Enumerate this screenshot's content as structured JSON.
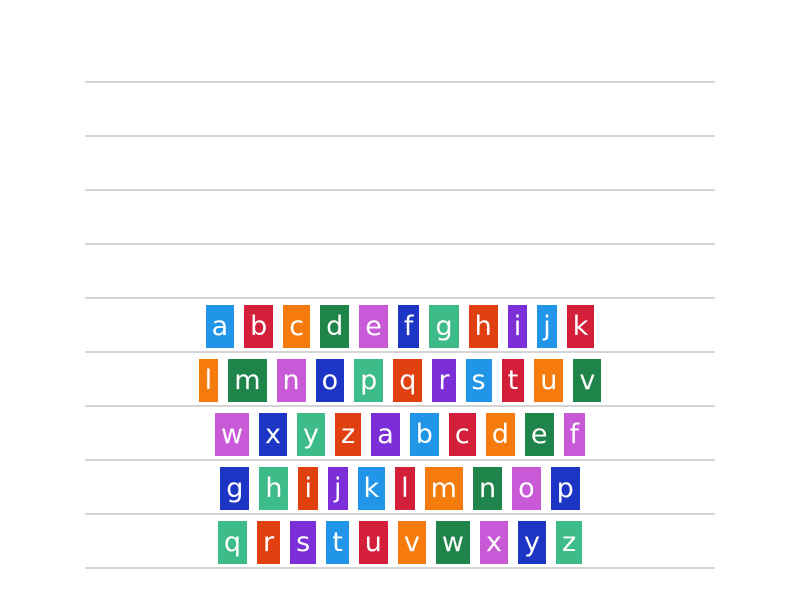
{
  "palette": {
    "blue": "#2196e8",
    "red": "#d41f3a",
    "orange": "#f57c0c",
    "green": "#1e8449",
    "pink": "#c85ad8",
    "navy": "#1c35c4",
    "teal": "#3dbb88",
    "redorange": "#e04010",
    "purple": "#7c2fd8"
  },
  "answer_slots": 5,
  "rows": [
    {
      "tiles": [
        {
          "letter": "a",
          "color": "blue"
        },
        {
          "letter": "b",
          "color": "red"
        },
        {
          "letter": "c",
          "color": "orange"
        },
        {
          "letter": "d",
          "color": "green"
        },
        {
          "letter": "e",
          "color": "pink"
        },
        {
          "letter": "f",
          "color": "navy"
        },
        {
          "letter": "g",
          "color": "teal"
        },
        {
          "letter": "h",
          "color": "redorange"
        },
        {
          "letter": "i",
          "color": "purple"
        },
        {
          "letter": "j",
          "color": "blue"
        },
        {
          "letter": "k",
          "color": "red"
        }
      ]
    },
    {
      "tiles": [
        {
          "letter": "l",
          "color": "orange"
        },
        {
          "letter": "m",
          "color": "green"
        },
        {
          "letter": "n",
          "color": "pink"
        },
        {
          "letter": "o",
          "color": "navy"
        },
        {
          "letter": "p",
          "color": "teal"
        },
        {
          "letter": "q",
          "color": "redorange"
        },
        {
          "letter": "r",
          "color": "purple"
        },
        {
          "letter": "s",
          "color": "blue"
        },
        {
          "letter": "t",
          "color": "red"
        },
        {
          "letter": "u",
          "color": "orange"
        },
        {
          "letter": "v",
          "color": "green"
        }
      ]
    },
    {
      "tiles": [
        {
          "letter": "w",
          "color": "pink"
        },
        {
          "letter": "x",
          "color": "navy"
        },
        {
          "letter": "y",
          "color": "teal"
        },
        {
          "letter": "z",
          "color": "redorange"
        },
        {
          "letter": "a",
          "color": "purple"
        },
        {
          "letter": "b",
          "color": "blue"
        },
        {
          "letter": "c",
          "color": "red"
        },
        {
          "letter": "d",
          "color": "orange"
        },
        {
          "letter": "e",
          "color": "green"
        },
        {
          "letter": "f",
          "color": "pink"
        }
      ]
    },
    {
      "tiles": [
        {
          "letter": "g",
          "color": "navy"
        },
        {
          "letter": "h",
          "color": "teal"
        },
        {
          "letter": "i",
          "color": "redorange"
        },
        {
          "letter": "j",
          "color": "purple"
        },
        {
          "letter": "k",
          "color": "blue"
        },
        {
          "letter": "l",
          "color": "red"
        },
        {
          "letter": "m",
          "color": "orange"
        },
        {
          "letter": "n",
          "color": "green"
        },
        {
          "letter": "o",
          "color": "pink"
        },
        {
          "letter": "p",
          "color": "navy"
        }
      ]
    },
    {
      "tiles": [
        {
          "letter": "q",
          "color": "teal"
        },
        {
          "letter": "r",
          "color": "redorange"
        },
        {
          "letter": "s",
          "color": "purple"
        },
        {
          "letter": "t",
          "color": "blue"
        },
        {
          "letter": "u",
          "color": "red"
        },
        {
          "letter": "v",
          "color": "orange"
        },
        {
          "letter": "w",
          "color": "green"
        },
        {
          "letter": "x",
          "color": "pink"
        },
        {
          "letter": "y",
          "color": "navy"
        },
        {
          "letter": "z",
          "color": "teal"
        }
      ]
    }
  ]
}
